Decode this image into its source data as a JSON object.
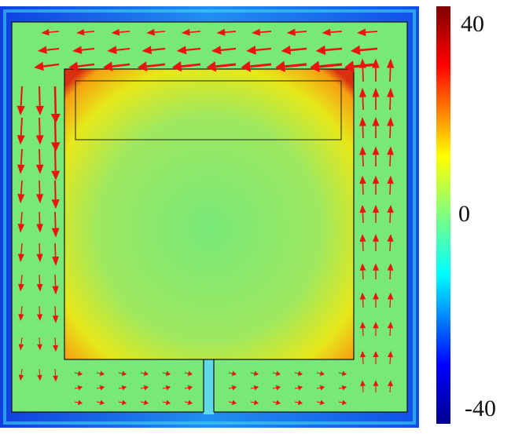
{
  "chart_data": {
    "type": "heatmap",
    "title": "",
    "colorbar": {
      "min": -40,
      "max": 40,
      "ticks": [
        "40",
        "0",
        "-40"
      ],
      "colormap": [
        "#00008f",
        "#0000ff",
        "#00ffff",
        "#80ff80",
        "#ffff00",
        "#ff0000",
        "#800000"
      ]
    },
    "field": {
      "outer_boundary_value": -40,
      "channel_value": 0,
      "inner_block_edge_value": 40,
      "inner_block_center_value": 5
    },
    "vectors": {
      "color": "#ee1111",
      "circulation": "counter-clockwise"
    }
  }
}
